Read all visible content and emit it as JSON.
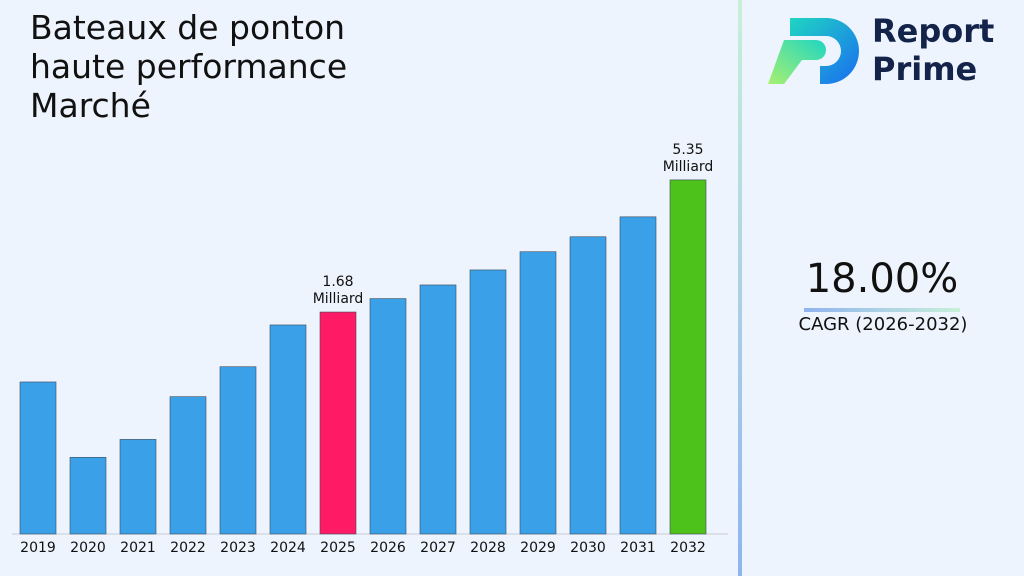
{
  "chart_data": {
    "type": "bar",
    "title": "Bateaux de ponton haute performance Marché",
    "categories": [
      "2019",
      "2020",
      "2021",
      "2022",
      "2023",
      "2024",
      "2025",
      "2026",
      "2027",
      "2028",
      "2029",
      "2030",
      "2031",
      "2032"
    ],
    "values": [
      0.91,
      0.47,
      0.55,
      0.8,
      1.04,
      1.5,
      1.68,
      1.89,
      2.13,
      2.43,
      2.85,
      3.25,
      3.87,
      5.35
    ],
    "value_labels": [
      null,
      null,
      null,
      null,
      null,
      null,
      "1.68 Milliard",
      null,
      null,
      null,
      null,
      null,
      null,
      "5.35 Milliard"
    ],
    "colors": [
      "#3aa0e8",
      "#3aa0e8",
      "#3aa0e8",
      "#3aa0e8",
      "#3aa0e8",
      "#3aa0e8",
      "#ff1a66",
      "#3aa0e8",
      "#3aa0e8",
      "#3aa0e8",
      "#3aa0e8",
      "#3aa0e8",
      "#3aa0e8",
      "#4cc21a"
    ],
    "log_scale": true,
    "ylim": [
      0.24,
      8
    ],
    "grid": false,
    "annotations": [
      "18.00%",
      "CAGR (2026-2032)"
    ]
  },
  "logo": {
    "lines": [
      "Report",
      "Prime"
    ]
  }
}
